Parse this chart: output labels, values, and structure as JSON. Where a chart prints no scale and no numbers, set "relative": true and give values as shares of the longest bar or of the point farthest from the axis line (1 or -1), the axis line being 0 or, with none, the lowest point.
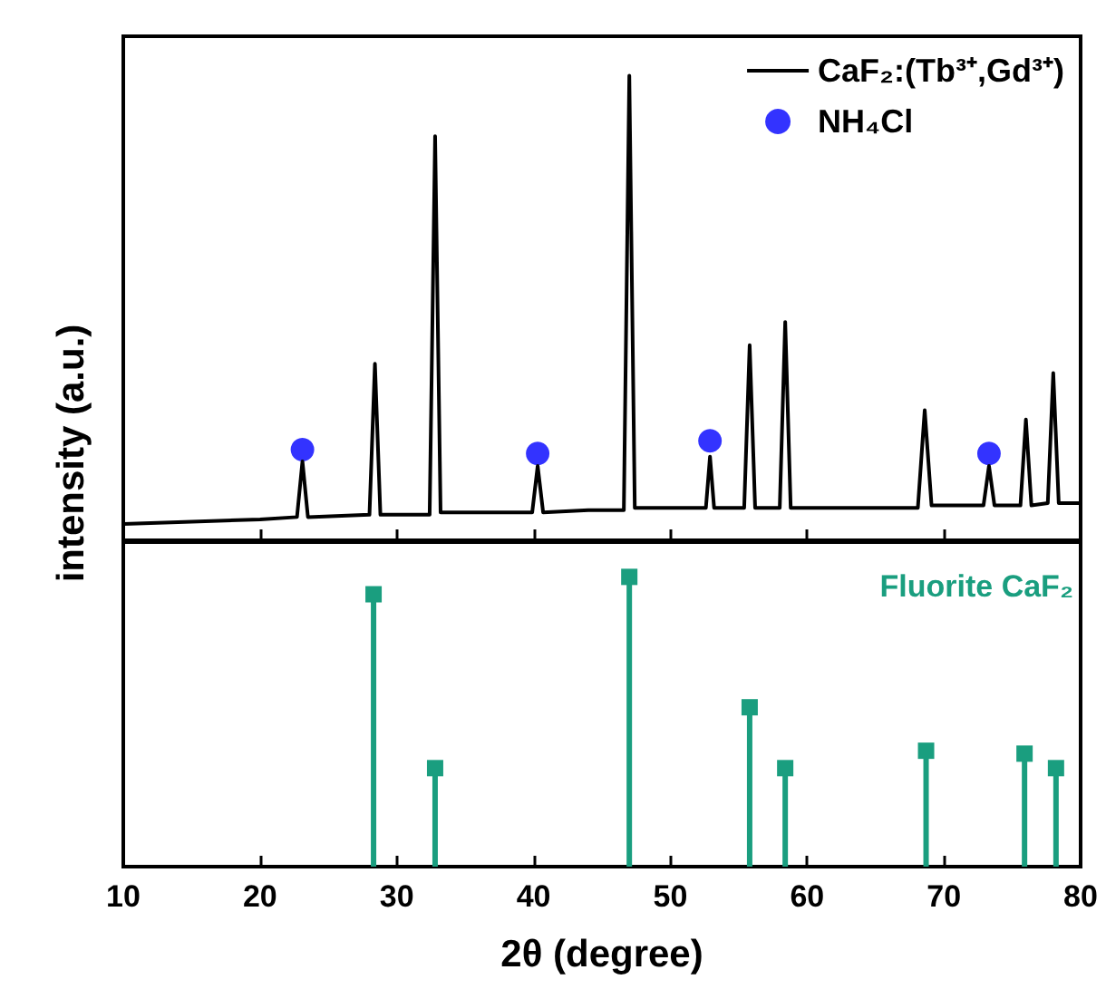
{
  "chart_data": [
    {
      "type": "line",
      "ylabel": "intensity (a.u.)",
      "relative": true,
      "xlim": [
        10,
        80
      ],
      "xticks": [
        10,
        20,
        30,
        40,
        50,
        60,
        70,
        80
      ],
      "tick_labels": false,
      "legend": "top right",
      "grid": false,
      "series": [
        {
          "name": "CaF₂:(Tb³⁺,Gd³⁺)",
          "type": "line",
          "color": "#000000",
          "marker": "none",
          "line_style": "solid",
          "x": [
            10,
            15,
            20,
            22.7,
            23.1,
            23.5,
            28.0,
            28.4,
            28.8,
            32.4,
            32.8,
            33.2,
            36,
            39.9,
            40.3,
            40.7,
            44,
            46.6,
            47.0,
            47.4,
            50,
            52.6,
            52.9,
            53.2,
            55.4,
            55.8,
            56.2,
            58.0,
            58.4,
            58.8,
            62,
            65,
            68.1,
            68.6,
            69.1,
            72.9,
            73.3,
            73.7,
            75.6,
            76.0,
            76.4,
            77.6,
            78.0,
            78.4,
            80
          ],
          "values": [
            0.035,
            0.04,
            0.045,
            0.05,
            0.17,
            0.05,
            0.055,
            0.38,
            0.055,
            0.055,
            0.87,
            0.06,
            0.06,
            0.06,
            0.16,
            0.06,
            0.065,
            0.065,
            1,
            0.07,
            0.07,
            0.07,
            0.18,
            0.07,
            0.07,
            0.42,
            0.07,
            0.07,
            0.47,
            0.07,
            0.07,
            0.07,
            0.07,
            0.28,
            0.075,
            0.075,
            0.16,
            0.075,
            0.075,
            0.26,
            0.075,
            0.08,
            0.36,
            0.08,
            0.08
          ]
        },
        {
          "name": "NH₄Cl",
          "type": "scatter",
          "color": "#0000ff",
          "marker": "circle",
          "x": [
            23.1,
            40.3,
            52.9,
            73.3
          ],
          "values": [
            0.195,
            0.187,
            0.214,
            0.187
          ]
        }
      ]
    },
    {
      "type": "lollipop",
      "xlabel": "2θ (degree)",
      "relative": true,
      "xlim": [
        10,
        80
      ],
      "xticks": [
        10,
        20,
        30,
        40,
        50,
        60,
        70,
        80
      ],
      "tick_labels": "x",
      "grid": false,
      "marker": "square",
      "annotations": [
        "Fluorite CaF₂"
      ],
      "series": [
        {
          "color": "#1a9e7f",
          "x": [
            28.3,
            32.8,
            47.0,
            55.8,
            58.4,
            68.7,
            75.9,
            78.2
          ],
          "values": [
            0.94,
            0.34,
            1,
            0.55,
            0.34,
            0.4,
            0.39,
            0.34
          ]
        }
      ]
    }
  ]
}
